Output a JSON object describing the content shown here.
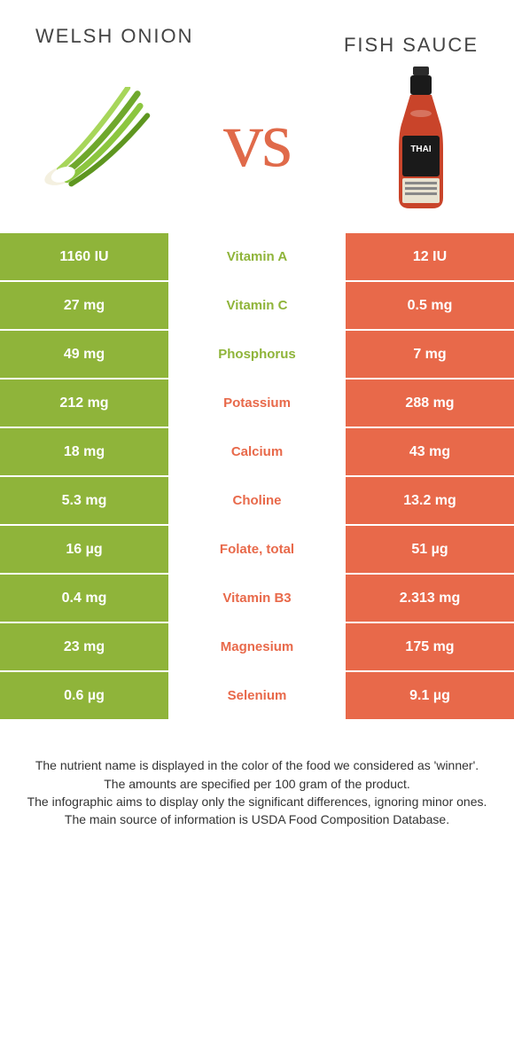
{
  "colors": {
    "green": "#8fb43a",
    "orange": "#e8694a",
    "white": "#ffffff",
    "text_dark": "#444444",
    "vs_color": "#e06a4a"
  },
  "header": {
    "left_title": "Welsh onion",
    "right_title": "Fish sauce",
    "vs_label": "vs"
  },
  "rows": [
    {
      "left": "1160 IU",
      "label": "Vitamin A",
      "right": "12 IU",
      "winner": "left"
    },
    {
      "left": "27 mg",
      "label": "Vitamin C",
      "right": "0.5 mg",
      "winner": "left"
    },
    {
      "left": "49 mg",
      "label": "Phosphorus",
      "right": "7 mg",
      "winner": "left"
    },
    {
      "left": "212 mg",
      "label": "Potassium",
      "right": "288 mg",
      "winner": "right"
    },
    {
      "left": "18 mg",
      "label": "Calcium",
      "right": "43 mg",
      "winner": "right"
    },
    {
      "left": "5.3 mg",
      "label": "Choline",
      "right": "13.2 mg",
      "winner": "right"
    },
    {
      "left": "16 µg",
      "label": "Folate, total",
      "right": "51 µg",
      "winner": "right"
    },
    {
      "left": "0.4 mg",
      "label": "Vitamin B3",
      "right": "2.313 mg",
      "winner": "right"
    },
    {
      "left": "23 mg",
      "label": "Magnesium",
      "right": "175 mg",
      "winner": "right"
    },
    {
      "left": "0.6 µg",
      "label": "Selenium",
      "right": "9.1 µg",
      "winner": "right"
    }
  ],
  "footer": {
    "line1": "The nutrient name is displayed in the color of the food we considered as 'winner'.",
    "line2": "The amounts are specified per 100 gram of the product.",
    "line3": "The infographic aims to display only the significant differences, ignoring minor ones.",
    "line4": "The main source of information is USDA Food Composition Database."
  }
}
